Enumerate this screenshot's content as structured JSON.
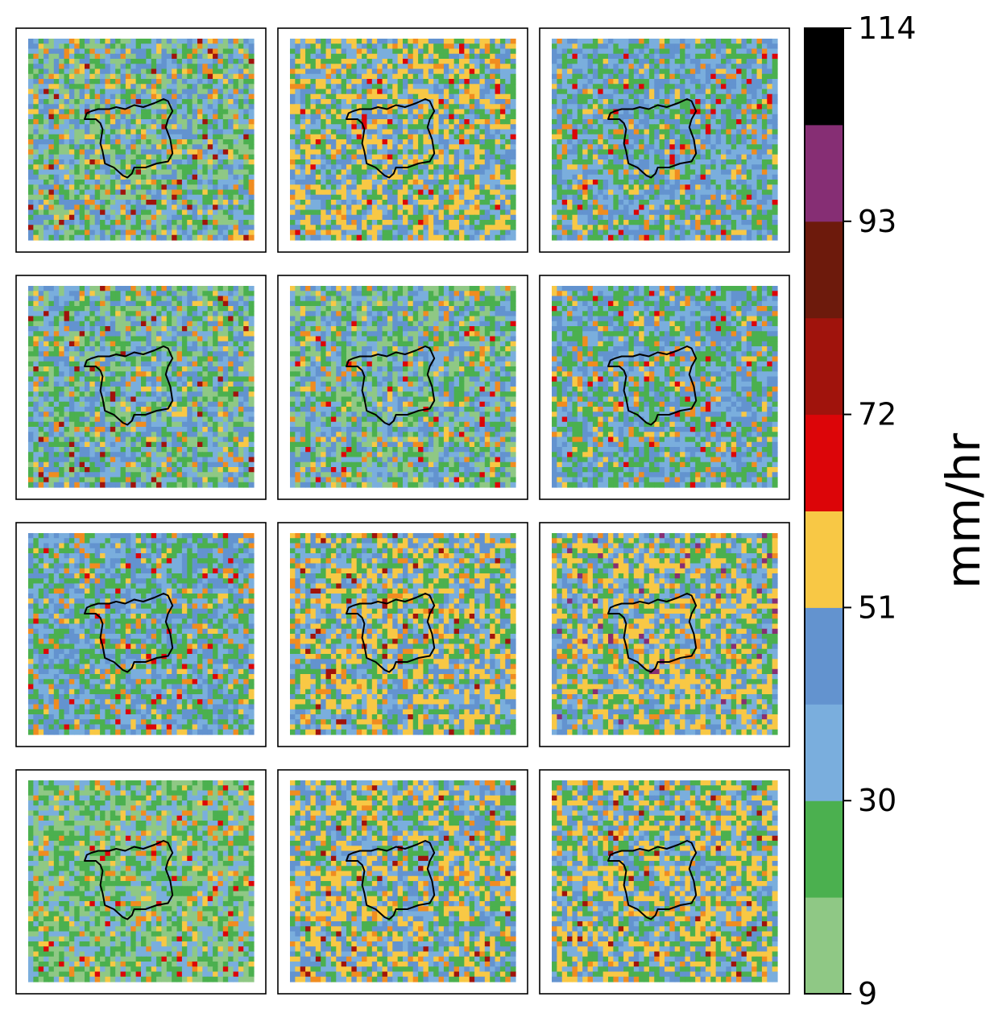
{
  "chart_data": {
    "type": "heatmap",
    "title": "",
    "layout": {
      "rows": 4,
      "cols": 3
    },
    "grid": false,
    "panel_axes_visible": false,
    "grid_cells": {
      "cols": 44,
      "rows": 40
    },
    "panels": [
      {
        "id": "r1c1",
        "row": 1,
        "col": 1,
        "dominant_bins": [
          "9-20",
          "20-30",
          "30-41",
          "41-51"
        ],
        "max_bin": "72-82"
      },
      {
        "id": "r1c2",
        "row": 1,
        "col": 2,
        "dominant_bins": [
          "20-30",
          "30-41",
          "41-51",
          "51-62"
        ],
        "max_bin": "62-72"
      },
      {
        "id": "r1c3",
        "row": 1,
        "col": 3,
        "dominant_bins": [
          "20-30",
          "30-41",
          "41-51"
        ],
        "max_bin": "62-72"
      },
      {
        "id": "r2c1",
        "row": 2,
        "col": 1,
        "dominant_bins": [
          "9-20",
          "20-30",
          "30-41",
          "41-51"
        ],
        "max_bin": "72-82"
      },
      {
        "id": "r2c2",
        "row": 2,
        "col": 2,
        "dominant_bins": [
          "9-20",
          "20-30",
          "30-41",
          "41-51"
        ],
        "max_bin": "62-72"
      },
      {
        "id": "r2c3",
        "row": 2,
        "col": 3,
        "dominant_bins": [
          "20-30",
          "30-41",
          "41-51"
        ],
        "max_bin": "62-72"
      },
      {
        "id": "r3c1",
        "row": 3,
        "col": 1,
        "dominant_bins": [
          "20-30",
          "30-41",
          "41-51"
        ],
        "max_bin": "62-72"
      },
      {
        "id": "r3c2",
        "row": 3,
        "col": 2,
        "dominant_bins": [
          "20-30",
          "30-41",
          "41-51",
          "51-62"
        ],
        "max_bin": "72-82"
      },
      {
        "id": "r3c3",
        "row": 3,
        "col": 3,
        "dominant_bins": [
          "20-30",
          "30-41",
          "41-51",
          "51-62"
        ],
        "max_bin": "93-103"
      },
      {
        "id": "r4c1",
        "row": 4,
        "col": 1,
        "dominant_bins": [
          "9-20",
          "20-30",
          "30-41"
        ],
        "max_bin": "62-72"
      },
      {
        "id": "r4c2",
        "row": 4,
        "col": 2,
        "dominant_bins": [
          "20-30",
          "30-41",
          "41-51",
          "51-62"
        ],
        "max_bin": "72-82"
      },
      {
        "id": "r4c3",
        "row": 4,
        "col": 3,
        "dominant_bins": [
          "20-30",
          "30-41",
          "41-51",
          "51-62"
        ],
        "max_bin": "72-82"
      }
    ],
    "colorbar": {
      "label": "mm/hr",
      "vmin": 9,
      "vmax": 114,
      "ticks": [
        9,
        30,
        51,
        72,
        93,
        114
      ],
      "tick_labels": [
        "9",
        "30",
        "51",
        "72",
        "93",
        "114"
      ],
      "bins": [
        {
          "range": "9-20",
          "color": "#8fc885"
        },
        {
          "range": "20-30",
          "color": "#4bb04f"
        },
        {
          "range": "30-41",
          "color": "#7aaedd"
        },
        {
          "range": "41-51",
          "color": "#6393cf"
        },
        {
          "range": "51-62",
          "color": "#f8c845"
        },
        {
          "range": "62-72",
          "color": "#dc0508"
        },
        {
          "range": "72-82",
          "color": "#a0130c"
        },
        {
          "range": "82-93",
          "color": "#6d1a0c"
        },
        {
          "range": "93-103",
          "color": "#862e74"
        },
        {
          "range": "103-114",
          "color": "#000000"
        }
      ],
      "orange_accent": "#f08c20"
    },
    "boundary_color": "#000000"
  }
}
